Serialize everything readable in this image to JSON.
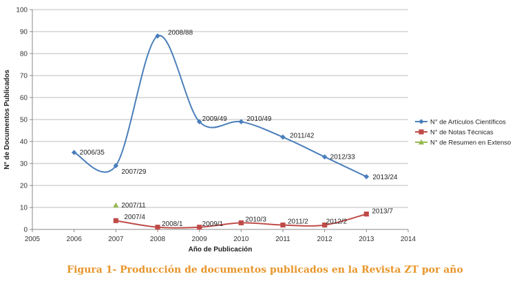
{
  "caption": "Figura 1- Producción de documentos publicados en la Revista ZT por año",
  "chart_data": {
    "type": "line",
    "xlabel": "Año de Publicación",
    "ylabel": "N° de Documentos Publicados",
    "xlim": [
      2005,
      2014
    ],
    "ylim": [
      0,
      100
    ],
    "x_ticks": [
      2005,
      2006,
      2007,
      2008,
      2009,
      2010,
      2011,
      2012,
      2013,
      2014
    ],
    "y_ticks": [
      0,
      10,
      20,
      30,
      40,
      50,
      60,
      70,
      80,
      90,
      100
    ],
    "grid": "horizontal",
    "legend_position": "right",
    "series": [
      {
        "name": "N° de Artículos Científicos",
        "color": "#4A7EBB",
        "marker": "diamond",
        "x": [
          2006,
          2007,
          2008,
          2009,
          2010,
          2011,
          2012,
          2013
        ],
        "y": [
          35,
          29,
          88,
          49,
          49,
          42,
          33,
          24
        ],
        "labels": [
          "2006/35",
          "2007/29",
          "2008/88",
          "2009/49",
          "2010/49",
          "2011/42",
          "2012/33",
          "2013/24"
        ]
      },
      {
        "name": "N° de Notas Técnicas",
        "color": "#BE4B48",
        "marker": "square",
        "x": [
          2007,
          2008,
          2009,
          2010,
          2011,
          2012,
          2013
        ],
        "y": [
          4,
          1,
          1,
          3,
          2,
          2,
          7
        ],
        "labels": [
          "2007/4",
          "2008/1",
          "2009/1",
          "2010/3",
          "2011/2",
          "2012/2",
          "2013/7"
        ]
      },
      {
        "name": "N° de Resumen en Extenso",
        "color": "#98B954",
        "marker": "triangle",
        "x": [
          2007
        ],
        "y": [
          11
        ],
        "labels": [
          "2007/11"
        ]
      }
    ]
  }
}
